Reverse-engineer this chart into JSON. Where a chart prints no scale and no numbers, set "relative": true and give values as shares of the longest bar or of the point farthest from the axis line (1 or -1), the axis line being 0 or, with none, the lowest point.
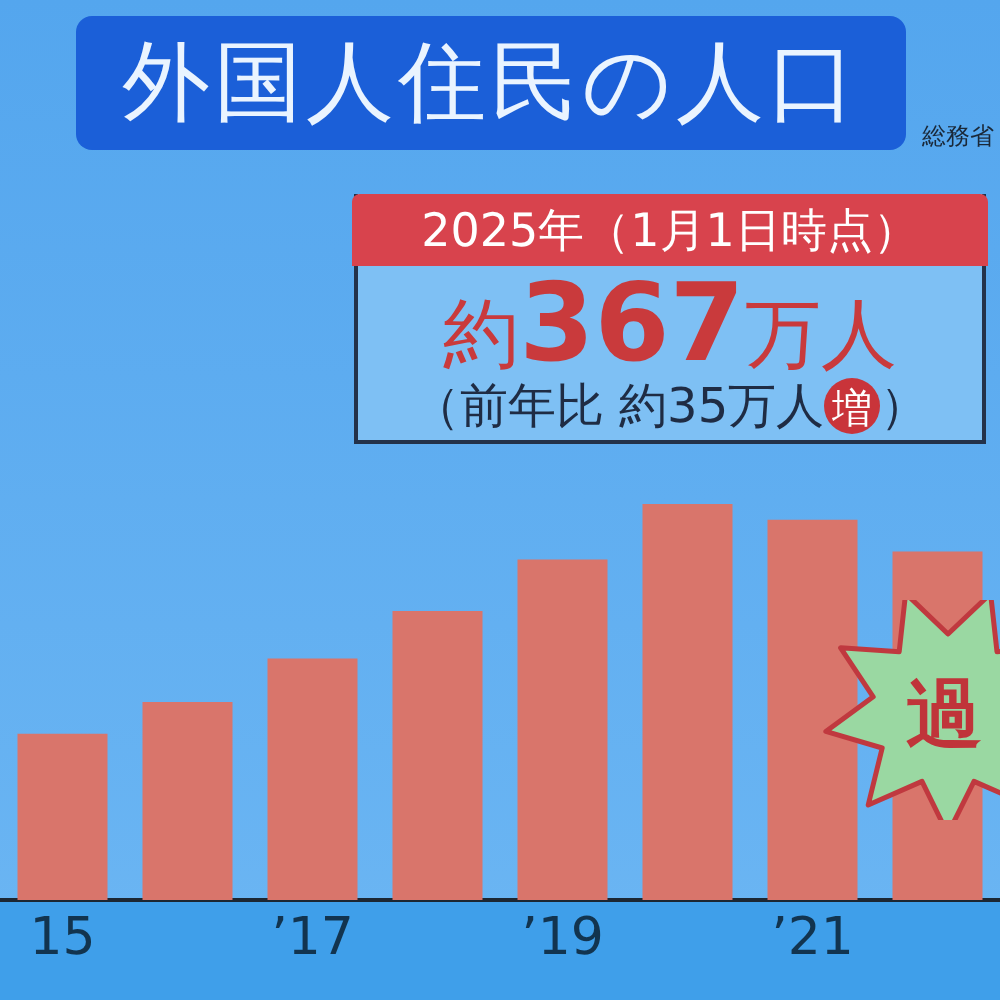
{
  "chart_data": {
    "type": "bar",
    "title": "外国人住民の人口",
    "categories": [
      "15",
      null,
      "’17",
      null,
      "’19",
      null,
      "’21",
      null
    ],
    "values": [
      0.42,
      0.5,
      0.61,
      0.73,
      0.86,
      1,
      0.96,
      0.88
    ],
    "relative": true,
    "color": "#d9756b",
    "annotations": [
      "総務省",
      "2025年（1月1日時点）",
      "約367万人",
      "（前年比 約35万人増）",
      "過"
    ]
  }
}
